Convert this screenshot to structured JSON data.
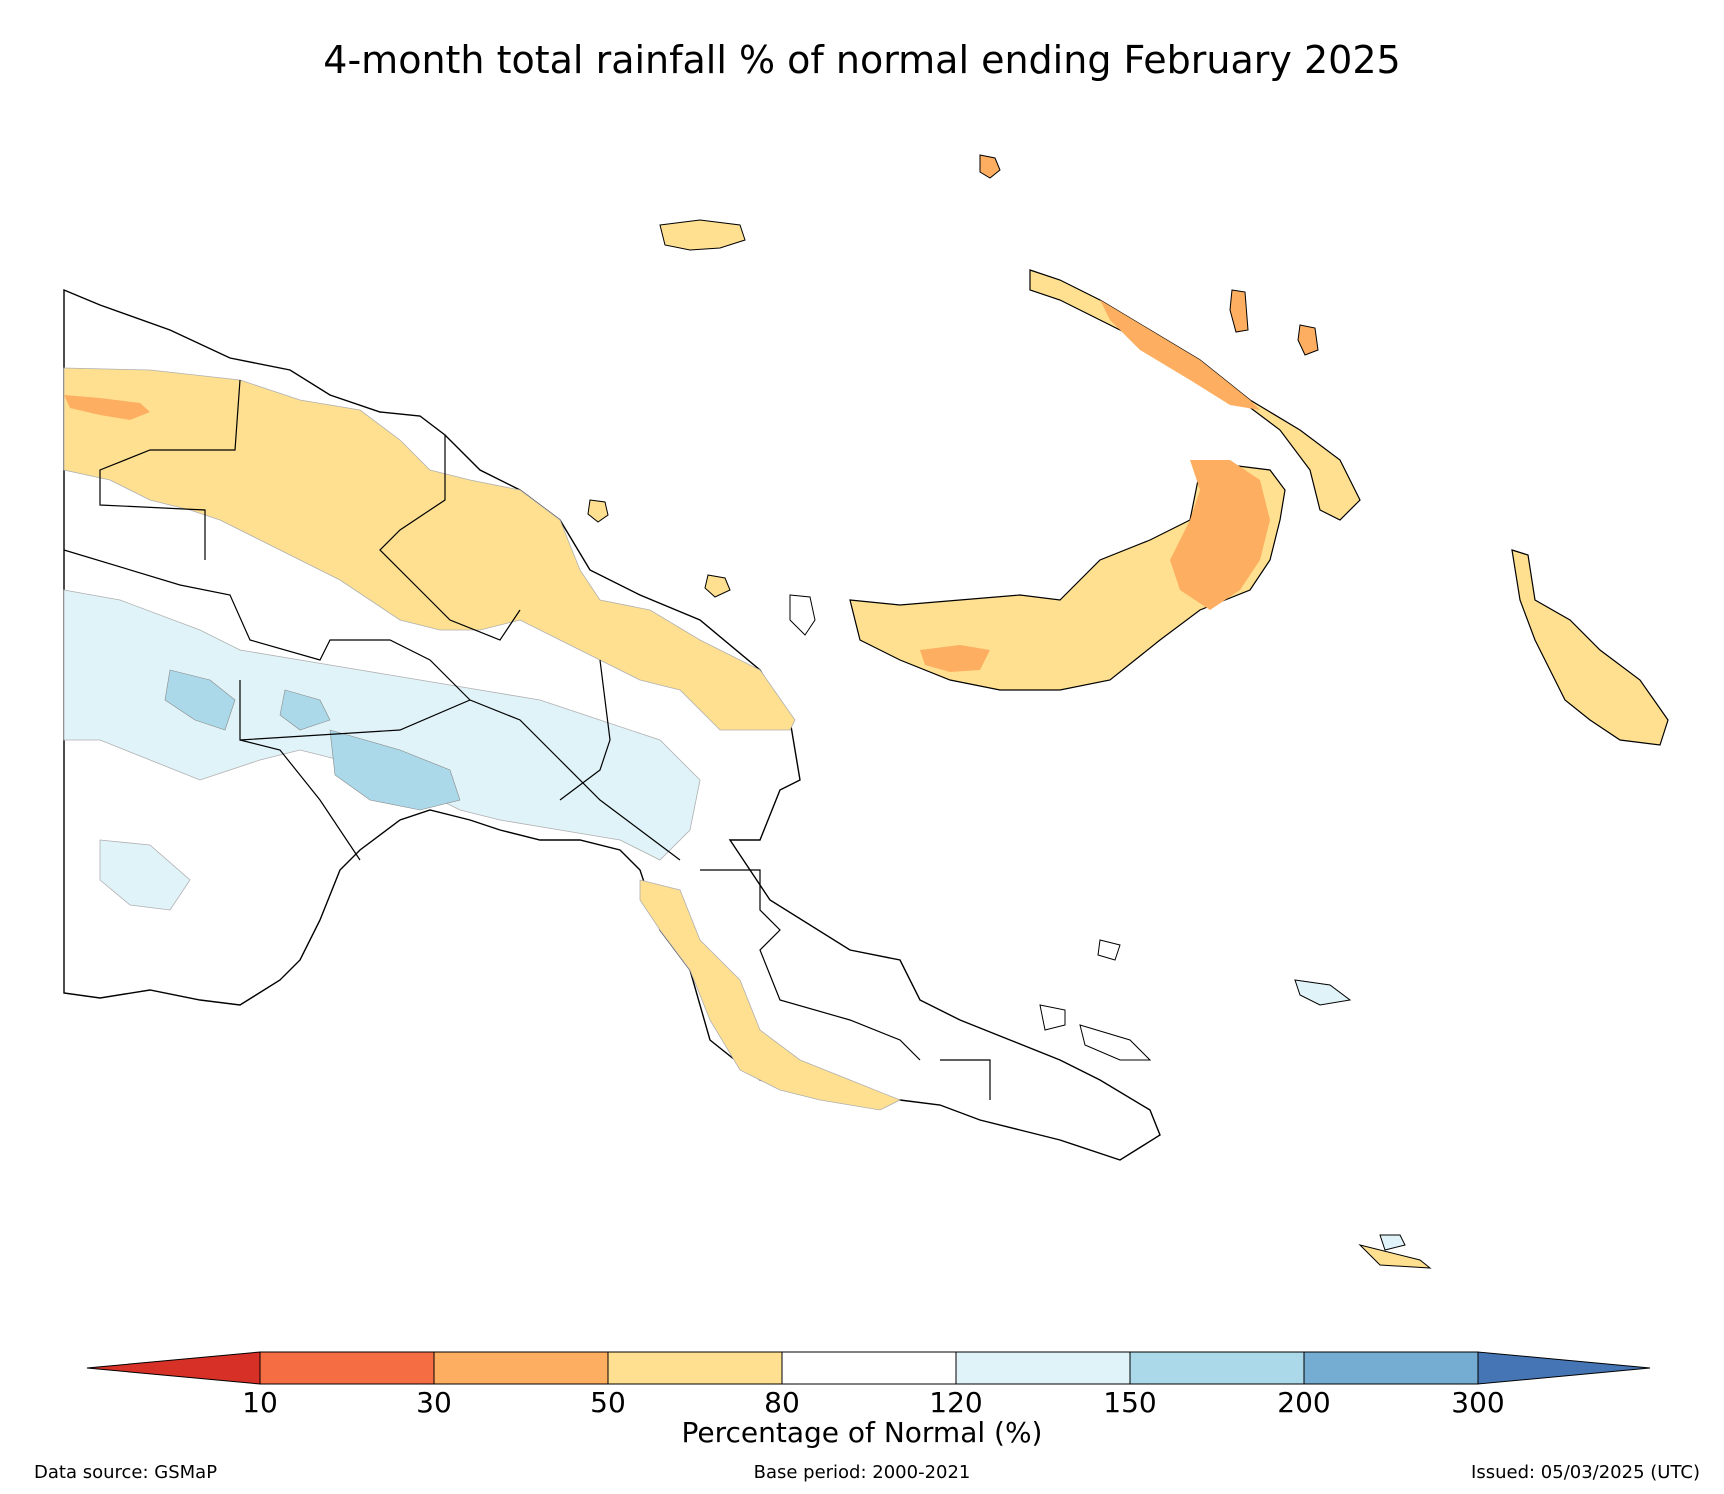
{
  "title": "4-month total rainfall % of normal ending February 2025",
  "colorbar": {
    "label": "Percentage of Normal (%)",
    "ticks": [
      "10",
      "30",
      "50",
      "80",
      "120",
      "150",
      "200",
      "300"
    ],
    "colors": {
      "below_10": "#d73027",
      "10_30": "#f46d43",
      "30_50": "#fdae61",
      "50_80": "#fee090",
      "80_120": "#ffffff",
      "120_150": "#e0f3f8",
      "150_200": "#abd9e9",
      "200_300": "#74add1",
      "above_300": "#4575b4"
    }
  },
  "footer": {
    "source": "Data source: GSMaP",
    "base": "Base period: 2000-2021",
    "issued": "Issued: 05/03/2025 (UTC)"
  }
}
